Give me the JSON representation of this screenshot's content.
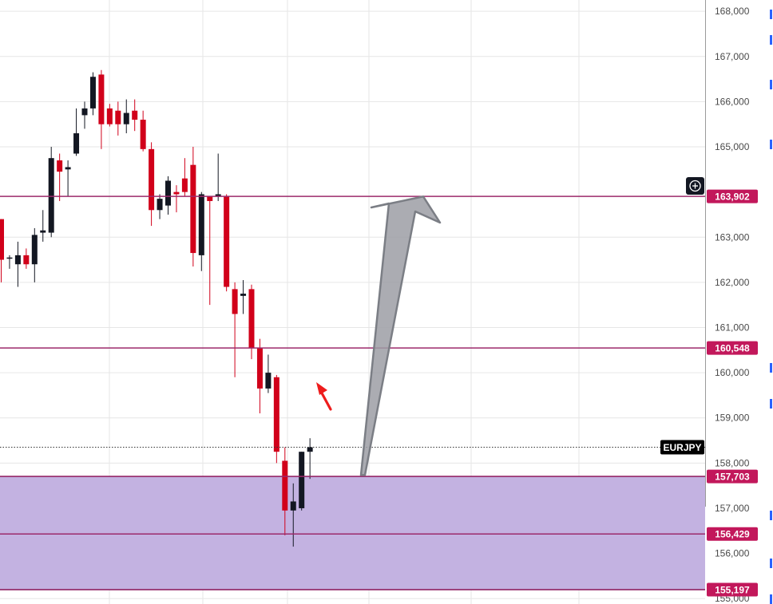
{
  "chart_data": {
    "type": "candlestick",
    "symbol": "EURJPY",
    "y_range": [
      154.88,
      168.25
    ],
    "y_ticks": [
      "168,000",
      "167,000",
      "166,000",
      "165,000",
      "163,000",
      "162,000",
      "161,000",
      "160,000",
      "159,000",
      "158,000",
      "157,000",
      "156,000",
      "155,000"
    ],
    "candles": [
      {
        "o": 163.4,
        "h": 163.4,
        "l": 162.0,
        "c": 162.5
      },
      {
        "o": 162.55,
        "h": 162.6,
        "l": 162.3,
        "c": 162.55
      },
      {
        "o": 162.4,
        "h": 162.9,
        "l": 161.9,
        "c": 162.6
      },
      {
        "o": 162.6,
        "h": 162.75,
        "l": 162.3,
        "c": 162.4
      },
      {
        "o": 162.4,
        "h": 163.2,
        "l": 162.0,
        "c": 163.05
      },
      {
        "o": 163.1,
        "h": 163.6,
        "l": 162.9,
        "c": 163.15
      },
      {
        "o": 163.1,
        "h": 165.0,
        "l": 163.0,
        "c": 164.75
      },
      {
        "o": 164.7,
        "h": 164.85,
        "l": 163.8,
        "c": 164.45
      },
      {
        "o": 164.5,
        "h": 164.7,
        "l": 163.9,
        "c": 164.55
      },
      {
        "o": 164.85,
        "h": 165.85,
        "l": 164.8,
        "c": 165.3
      },
      {
        "o": 165.7,
        "h": 166.0,
        "l": 165.4,
        "c": 165.85
      },
      {
        "o": 165.85,
        "h": 166.65,
        "l": 165.7,
        "c": 166.55
      },
      {
        "o": 166.6,
        "h": 166.7,
        "l": 164.95,
        "c": 165.5
      },
      {
        "o": 165.85,
        "h": 165.95,
        "l": 165.45,
        "c": 165.5
      },
      {
        "o": 165.8,
        "h": 166.0,
        "l": 165.25,
        "c": 165.5
      },
      {
        "o": 165.5,
        "h": 166.05,
        "l": 165.3,
        "c": 165.75
      },
      {
        "o": 165.8,
        "h": 166.05,
        "l": 165.35,
        "c": 165.6
      },
      {
        "o": 165.6,
        "h": 165.8,
        "l": 164.9,
        "c": 164.95
      },
      {
        "o": 164.95,
        "h": 165.1,
        "l": 163.25,
        "c": 163.6
      },
      {
        "o": 163.6,
        "h": 163.95,
        "l": 163.4,
        "c": 163.85
      },
      {
        "o": 163.7,
        "h": 164.35,
        "l": 163.5,
        "c": 164.25
      },
      {
        "o": 164.0,
        "h": 164.15,
        "l": 163.55,
        "c": 163.95
      },
      {
        "o": 164.3,
        "h": 164.75,
        "l": 163.9,
        "c": 164.0
      },
      {
        "o": 164.6,
        "h": 165.0,
        "l": 162.35,
        "c": 162.65
      },
      {
        "o": 162.6,
        "h": 164.0,
        "l": 162.25,
        "c": 163.95
      },
      {
        "o": 163.9,
        "h": 163.9,
        "l": 161.5,
        "c": 163.8
      },
      {
        "o": 163.9,
        "h": 164.85,
        "l": 163.8,
        "c": 163.95
      },
      {
        "o": 163.9,
        "h": 163.95,
        "l": 161.8,
        "c": 161.9
      },
      {
        "o": 161.85,
        "h": 162.0,
        "l": 159.9,
        "c": 161.3
      },
      {
        "o": 161.7,
        "h": 162.05,
        "l": 161.3,
        "c": 161.75
      },
      {
        "o": 161.85,
        "h": 161.95,
        "l": 160.3,
        "c": 160.55
      },
      {
        "o": 160.55,
        "h": 160.75,
        "l": 159.1,
        "c": 159.65
      },
      {
        "o": 159.65,
        "h": 160.4,
        "l": 159.55,
        "c": 160.0
      },
      {
        "o": 159.9,
        "h": 159.95,
        "l": 158.0,
        "c": 158.25
      },
      {
        "o": 158.05,
        "h": 158.35,
        "l": 156.4,
        "c": 156.95
      },
      {
        "o": 156.95,
        "h": 157.55,
        "l": 156.15,
        "c": 157.15
      },
      {
        "o": 157.0,
        "h": 158.25,
        "l": 156.95,
        "c": 158.25
      },
      {
        "o": 158.25,
        "h": 158.55,
        "l": 157.65,
        "c": 158.35
      }
    ],
    "levels": [
      {
        "value": 163.902,
        "label": "163,902"
      },
      {
        "value": 160.548,
        "label": "160,548"
      },
      {
        "value": 157.703,
        "label": "157,703"
      },
      {
        "value": 156.429,
        "label": "156,429"
      },
      {
        "value": 155.197,
        "label": "155,197"
      }
    ],
    "zone": {
      "top": 157.703,
      "bottom": 155.197
    },
    "last_price": 158.35,
    "arrow_big": {
      "from_price": 157.7,
      "to_price": 163.9
    },
    "colors": {
      "up": "#131722",
      "down": "#d1001a",
      "level_line": "#9c2a6b",
      "tag": "#c2185b",
      "zone_fill": "#c3b2e1",
      "zone_border": "#6c4a77",
      "grid": "#e6e6e6",
      "arrow_fill": "#9c9ea4",
      "arrow_stroke": "#7b7e85",
      "pointer": "#ee1c1c",
      "symbol_bg": "#000000"
    },
    "grid": true,
    "icons": [
      "crosshair-plus-icon",
      "red-pointer-arrow",
      "large-up-arrow"
    ]
  }
}
